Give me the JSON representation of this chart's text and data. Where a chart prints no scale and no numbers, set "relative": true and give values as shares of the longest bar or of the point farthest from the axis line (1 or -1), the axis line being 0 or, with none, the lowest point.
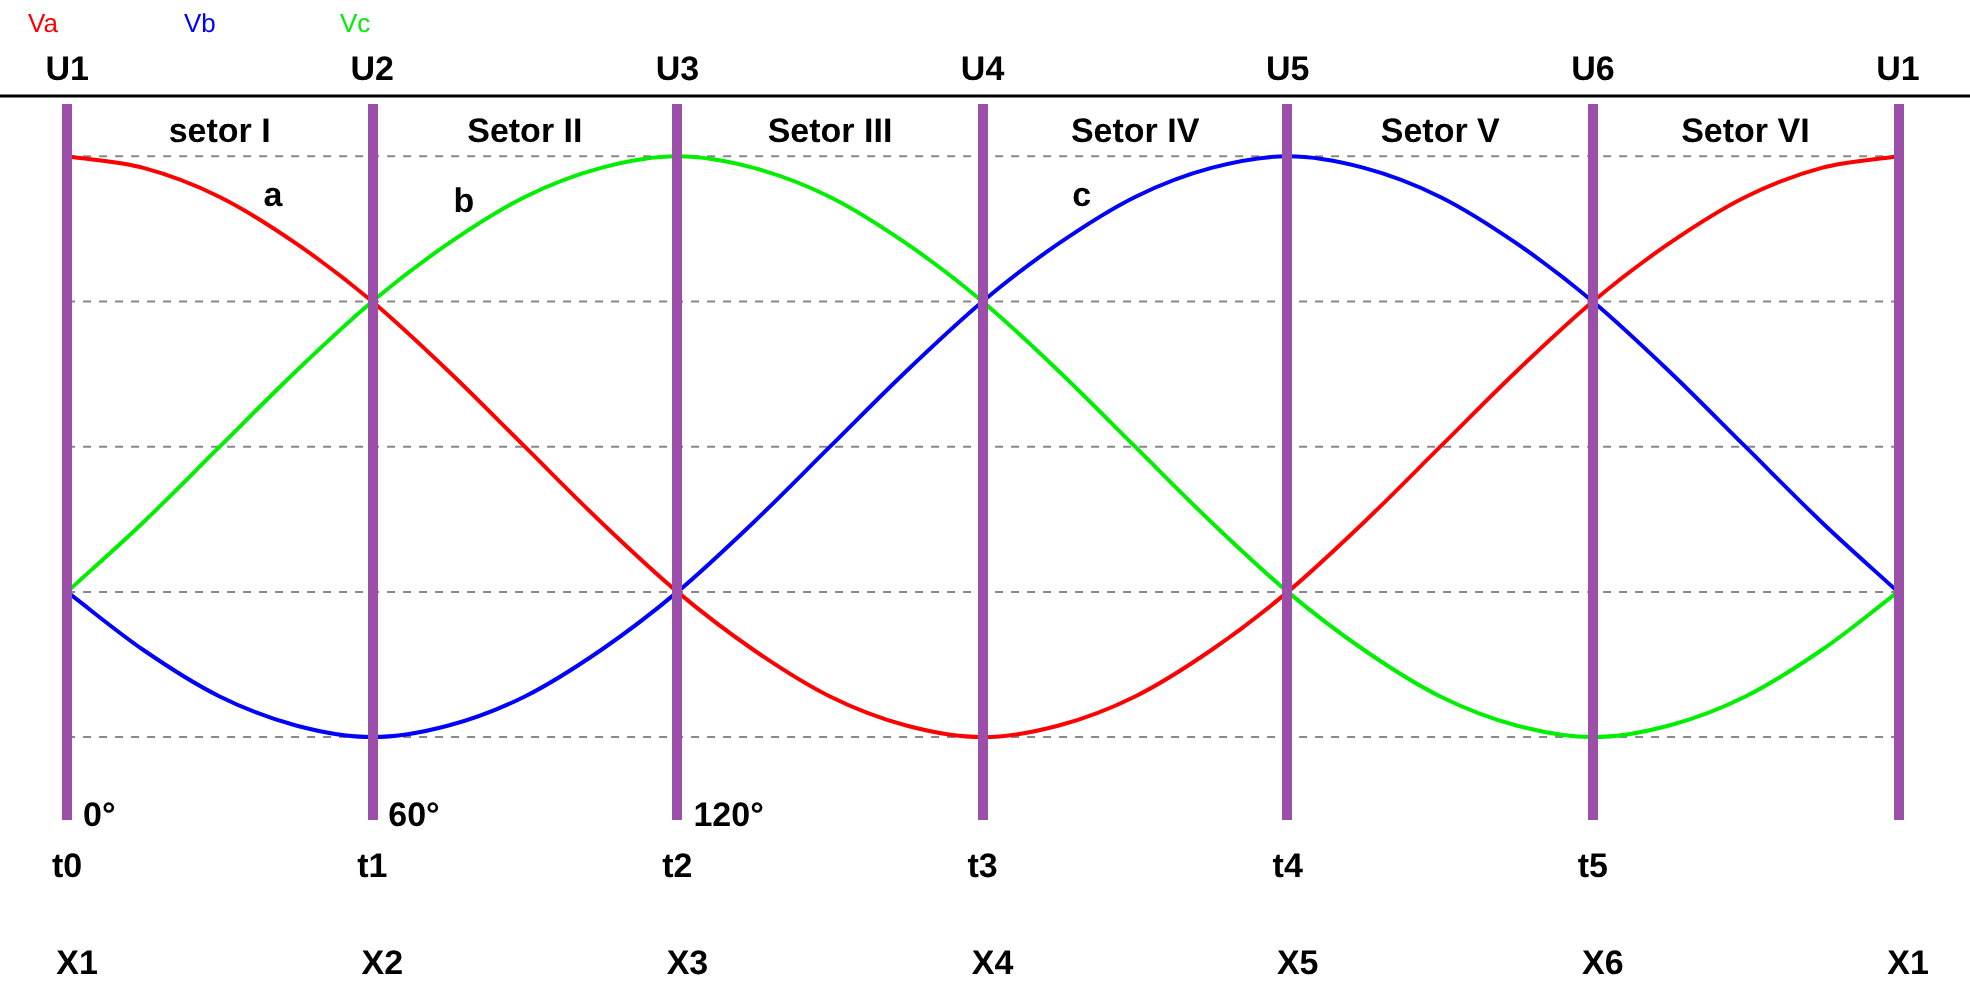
{
  "chart_data": {
    "type": "line",
    "relative": true,
    "legend": "top left",
    "grid": "y",
    "marker": "none",
    "categories": [
      "t0",
      null,
      null,
      null,
      "t1",
      null,
      null,
      null,
      "t2",
      null,
      null,
      null,
      "t3",
      null,
      null,
      null,
      "t4",
      null,
      null,
      null,
      "t5",
      null,
      null,
      null,
      null
    ],
    "series": [
      {
        "name": "Va",
        "color": "#ff0000",
        "values": [
          1,
          0.98,
          0.93,
          0.85,
          0.75,
          0.63,
          0.5,
          0.37,
          0.25,
          0.15,
          0.07,
          0.02,
          0,
          0.02,
          0.07,
          0.15,
          0.25,
          0.37,
          0.5,
          0.63,
          0.75,
          0.85,
          0.93,
          0.98,
          1
        ]
      },
      {
        "name": "Vb",
        "color": "#0000ff",
        "values": [
          0.25,
          0.15,
          0.07,
          0.02,
          0,
          0.02,
          0.07,
          0.15,
          0.25,
          0.37,
          0.5,
          0.63,
          0.75,
          0.85,
          0.93,
          0.98,
          1,
          0.98,
          0.93,
          0.85,
          0.75,
          0.63,
          0.5,
          0.37,
          0.25
        ]
      },
      {
        "name": "Vc",
        "color": "#00ee00",
        "values": [
          0.25,
          0.37,
          0.5,
          0.63,
          0.75,
          0.85,
          0.93,
          0.98,
          1,
          0.98,
          0.93,
          0.85,
          0.75,
          0.63,
          0.5,
          0.37,
          0.25,
          0.15,
          0.07,
          0.02,
          0,
          0.02,
          0.07,
          0.15,
          0.25
        ]
      }
    ],
    "annotations": [
      "U1",
      "U2",
      "U3",
      "U4",
      "U5",
      "U6",
      "U1",
      "setor I",
      "Setor II",
      "Setor III",
      "Setor IV",
      "Setor V",
      "Setor VI",
      "a",
      "b",
      "c",
      "0°",
      "60°",
      "120°",
      "X1",
      "X2",
      "X3",
      "X4",
      "X5",
      "X6",
      "X1"
    ]
  }
}
